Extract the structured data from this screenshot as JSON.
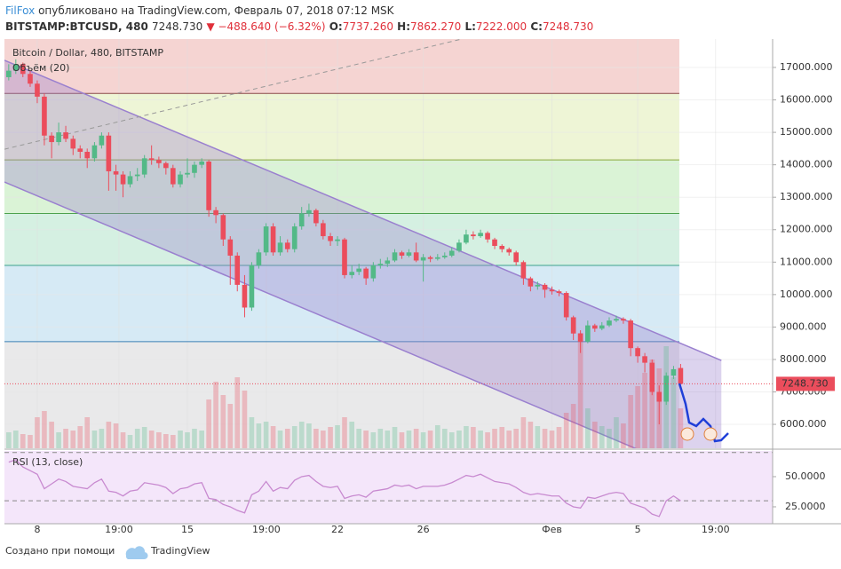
{
  "header": {
    "author": "FilFox",
    "published": "опубликовано на TradingView.com, Февраль 07, 2018 07:12 MSK",
    "symbol": "BITSTAMP:BTCUSD, 480",
    "last": "7248.730",
    "change": "▼ −488.640 (−6.32%)",
    "o_label": "O:",
    "o": "7737.260",
    "h_label": "H:",
    "h": "7862.270",
    "l_label": "L:",
    "l": "7222.000",
    "c_label": "C:",
    "c": "7248.730"
  },
  "footer": {
    "made_with": "Создано при помощи",
    "brand": "TradingView"
  },
  "chart_data": [
    {
      "type": "candlestick",
      "title": "Bitcoin / Dollar, 480, BITSTAMP",
      "volume_title": "Объём (20)",
      "up_color": "#53b987",
      "down_color": "#eb4d5c",
      "x": [
        -1.33,
        -1,
        -0.67,
        -0.33,
        0,
        0.33,
        0.67,
        1,
        1.33,
        1.67,
        2,
        2.33,
        2.67,
        3,
        3.33,
        3.67,
        4,
        4.33,
        4.67,
        5,
        5.33,
        5.67,
        6,
        6.33,
        6.67,
        7,
        7.33,
        7.67,
        8,
        8.33,
        8.67,
        9,
        9.33,
        9.67,
        10,
        10.33,
        10.67,
        11,
        11.33,
        11.67,
        12,
        12.33,
        12.67,
        13,
        13.33,
        13.67,
        14,
        14.33,
        14.67,
        15,
        15.33,
        15.67,
        16,
        16.33,
        16.67,
        17,
        17.33,
        17.67,
        18,
        18.33,
        18.67,
        19,
        19.33,
        19.67,
        20,
        20.33,
        20.67,
        21,
        21.33,
        21.67,
        22,
        22.33,
        22.67,
        23,
        23.33,
        23.67,
        24,
        24.33,
        24.67,
        25,
        25.33,
        25.67,
        26,
        26.33,
        26.67,
        27,
        27.33,
        27.67,
        28,
        28.33,
        28.67,
        29,
        29.33,
        29.67,
        30
      ],
      "open": [
        16700,
        16900,
        17100,
        16800,
        16500,
        16100,
        14900,
        14700,
        15000,
        14800,
        14500,
        14400,
        14200,
        14600,
        14900,
        13800,
        13700,
        13400,
        13650,
        13700,
        14200,
        14150,
        14050,
        13900,
        13400,
        13700,
        13750,
        14000,
        14100,
        12600,
        12450,
        11700,
        11200,
        10300,
        9600,
        10900,
        11300,
        12100,
        11300,
        11600,
        11400,
        12100,
        12500,
        12600,
        12200,
        11800,
        11650,
        11700,
        10600,
        10700,
        10800,
        10500,
        10900,
        10950,
        11050,
        11300,
        11200,
        11300,
        11050,
        11150,
        11100,
        11150,
        11200,
        11350,
        11600,
        11850,
        11800,
        11900,
        11700,
        11500,
        11400,
        11300,
        11000,
        10500,
        10250,
        10300,
        10150,
        10100,
        10050,
        9300,
        8800,
        8550,
        9050,
        8950,
        9050,
        9200,
        9250,
        9200,
        8350,
        8100,
        7900,
        7000,
        6700,
        7500,
        7737.26
      ],
      "high": [
        17100,
        17250,
        17150,
        16900,
        16600,
        16200,
        15000,
        15300,
        15200,
        14900,
        14600,
        14500,
        14700,
        15000,
        15000,
        14000,
        13800,
        13800,
        13900,
        14300,
        14600,
        14250,
        14100,
        14000,
        13800,
        14200,
        14100,
        14200,
        14150,
        12700,
        12500,
        11800,
        11300,
        10600,
        11000,
        11400,
        12200,
        12200,
        11800,
        11700,
        12200,
        12700,
        12800,
        12650,
        12300,
        11900,
        11800,
        11750,
        10900,
        10950,
        10850,
        11000,
        11100,
        11150,
        11400,
        11350,
        11400,
        11600,
        11250,
        11200,
        11250,
        11300,
        11450,
        11700,
        12000,
        11950,
        12000,
        11950,
        11750,
        11550,
        11450,
        11350,
        11050,
        10550,
        10400,
        10350,
        10250,
        10150,
        10100,
        9350,
        8900,
        9200,
        9100,
        9150,
        9300,
        9350,
        9300,
        9250,
        8400,
        8200,
        8000,
        7200,
        7600,
        7800,
        7862.27
      ],
      "low": [
        16600,
        16800,
        16700,
        16400,
        15900,
        14600,
        14200,
        14600,
        14700,
        14300,
        14200,
        13900,
        14100,
        14500,
        13200,
        13200,
        13000,
        13300,
        13500,
        13600,
        14000,
        13900,
        13700,
        13300,
        13300,
        13600,
        13600,
        13900,
        12400,
        12200,
        11500,
        10300,
        10100,
        9300,
        9500,
        10800,
        11200,
        11200,
        11200,
        11300,
        11300,
        12000,
        12400,
        12100,
        11700,
        11500,
        11500,
        10500,
        10500,
        10600,
        10300,
        10400,
        10800,
        10850,
        11000,
        11100,
        11150,
        11000,
        10400,
        11000,
        11050,
        11100,
        11150,
        11300,
        11550,
        11700,
        11750,
        11600,
        11400,
        11300,
        11200,
        10900,
        10300,
        10100,
        10150,
        9900,
        10000,
        9950,
        9200,
        8600,
        8200,
        8500,
        8850,
        8900,
        9000,
        9150,
        9100,
        8100,
        7900,
        7600,
        6900,
        6000,
        6600,
        7400,
        7222
      ],
      "close": [
        16900,
        17100,
        16800,
        16500,
        16100,
        14900,
        14700,
        15000,
        14800,
        14500,
        14400,
        14200,
        14600,
        14900,
        13800,
        13700,
        13400,
        13650,
        13700,
        14200,
        14150,
        14050,
        13900,
        13400,
        13700,
        13750,
        14000,
        14100,
        12600,
        12450,
        11700,
        11200,
        10300,
        9600,
        10900,
        11300,
        12100,
        11300,
        11600,
        11400,
        12100,
        12500,
        12600,
        12200,
        11800,
        11650,
        11700,
        10600,
        10700,
        10800,
        10500,
        10900,
        10950,
        11050,
        11300,
        11200,
        11300,
        11050,
        11150,
        11100,
        11150,
        11200,
        11350,
        11600,
        11850,
        11800,
        11900,
        11700,
        11500,
        11400,
        11300,
        11000,
        10500,
        10250,
        10300,
        10150,
        10100,
        10050,
        9300,
        8800,
        8550,
        9050,
        8950,
        9050,
        9200,
        9250,
        9200,
        8350,
        8100,
        7900,
        7000,
        6700,
        7500,
        7700,
        7248.73
      ],
      "volume": [
        18,
        20,
        16,
        15,
        35,
        42,
        30,
        18,
        22,
        20,
        25,
        35,
        20,
        22,
        30,
        28,
        18,
        15,
        22,
        24,
        20,
        18,
        16,
        15,
        20,
        18,
        22,
        20,
        55,
        75,
        60,
        50,
        80,
        65,
        35,
        28,
        30,
        25,
        20,
        22,
        25,
        30,
        28,
        22,
        20,
        24,
        26,
        35,
        30,
        22,
        20,
        18,
        22,
        20,
        24,
        18,
        20,
        22,
        18,
        20,
        26,
        22,
        18,
        20,
        25,
        24,
        20,
        18,
        22,
        24,
        20,
        22,
        35,
        30,
        25,
        22,
        20,
        24,
        40,
        50,
        130,
        45,
        30,
        25,
        22,
        35,
        28,
        60,
        70,
        85,
        100,
        90,
        115,
        80,
        45
      ],
      "volume_lim": [
        0,
        461
      ],
      "last_close_label": "7248.730",
      "xlim": [
        -1.53,
        34.29
      ],
      "xticks": [
        {
          "value": 0,
          "label": "8"
        },
        {
          "value": 3.81,
          "label": "19:00"
        },
        {
          "value": 7,
          "label": "15"
        },
        {
          "value": 10.68,
          "label": "19:00"
        },
        {
          "value": 14,
          "label": "22"
        },
        {
          "value": 18,
          "label": "26"
        },
        {
          "value": 24,
          "label": "Фев"
        },
        {
          "value": 28,
          "label": "5"
        },
        {
          "value": 31.63,
          "label": "19:00"
        }
      ],
      "ylim": [
        5263,
        17875
      ],
      "yticks": [
        {
          "value": 6000,
          "label": "6000.000"
        },
        {
          "value": 7000,
          "label": "7000.000"
        },
        {
          "value": 8000,
          "label": "8000.000"
        },
        {
          "value": 9000,
          "label": "9000.000"
        },
        {
          "value": 10000,
          "label": "10000.000"
        },
        {
          "value": 11000,
          "label": "11000.000"
        },
        {
          "value": 12000,
          "label": "12000.000"
        },
        {
          "value": 13000,
          "label": "13000.000"
        },
        {
          "value": 14000,
          "label": "14000.000"
        },
        {
          "value": 15000,
          "label": "15000.000"
        },
        {
          "value": 16000,
          "label": "16000.000"
        },
        {
          "value": 17000,
          "label": "17000.000"
        }
      ],
      "grid": true,
      "fib_xlim": [
        -1.53,
        29.94
      ],
      "fib_levels": [
        {
          "value": 16200,
          "color": "#8b4a4a"
        },
        {
          "value": 14150,
          "color": "#8aa63a"
        },
        {
          "value": 12500,
          "color": "#4da24d"
        },
        {
          "value": 10900,
          "color": "#3fa08f"
        },
        {
          "value": 8550,
          "color": "#3d80b3"
        }
      ],
      "fib_bands": [
        "#f5d4d2",
        "#eef5d6",
        "#daf3d6",
        "#d5f0e2",
        "#d6eaf5",
        "#e9e9ea"
      ],
      "channel": {
        "color": "#9a80cf",
        "upper": [
          [
            -1.53,
            17220
          ],
          [
            31.9,
            7970
          ]
        ],
        "lower": [
          [
            -1.53,
            13470
          ],
          [
            31.9,
            4140
          ]
        ]
      },
      "trend_line": {
        "color": "#999999",
        "points": [
          [
            -1.53,
            14480
          ],
          [
            19.79,
            17875
          ]
        ]
      }
    },
    {
      "type": "line",
      "title": "RSI (13, close)",
      "color": "#c88ad0",
      "values": [
        62,
        64,
        58,
        55,
        52,
        40,
        44,
        48,
        46,
        42,
        41,
        40,
        45,
        48,
        38,
        37,
        34,
        38,
        39,
        45,
        44,
        43,
        41,
        36,
        40,
        41,
        44,
        45,
        32,
        31,
        27,
        25,
        22,
        20,
        35,
        38,
        46,
        38,
        41,
        40,
        47,
        50,
        51,
        46,
        42,
        41,
        42,
        32,
        34,
        35,
        33,
        38,
        39,
        40,
        43,
        42,
        43,
        40,
        42,
        42,
        42,
        43,
        45,
        48,
        51,
        50,
        52,
        49,
        46,
        45,
        44,
        41,
        37,
        35,
        36,
        35,
        34,
        34,
        28,
        25,
        24,
        33,
        32,
        34,
        36,
        37,
        36,
        28,
        26,
        24,
        19,
        17,
        30,
        34,
        30
      ],
      "bands": [
        30,
        70
      ],
      "ylim": [
        11,
        71.3
      ],
      "yticks": [
        {
          "value": 25,
          "label": "25.0000"
        },
        {
          "value": 50,
          "label": "50.0000"
        }
      ]
    }
  ]
}
